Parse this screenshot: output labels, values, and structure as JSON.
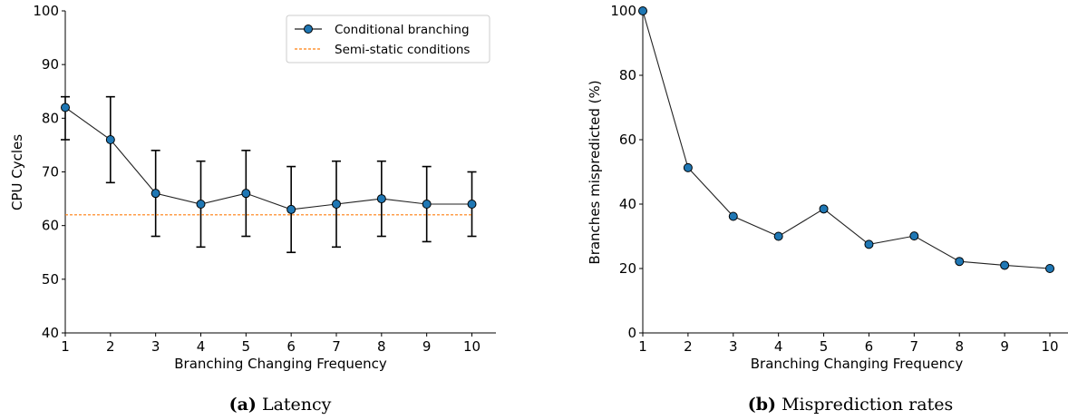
{
  "chart_data": [
    {
      "type": "line",
      "caption_tag": "(a)",
      "caption_text": "Latency",
      "xlabel": "Branching Changing Frequency",
      "ylabel": "CPU Cycles",
      "x": [
        1,
        2,
        3,
        4,
        5,
        6,
        7,
        8,
        9,
        10
      ],
      "xlim": [
        1,
        10.5
      ],
      "ylim": [
        40,
        100
      ],
      "yticks": [
        40,
        50,
        60,
        70,
        80,
        90,
        100
      ],
      "grid": false,
      "legend_position": "top-right",
      "series": [
        {
          "name": "Conditional branching",
          "style": "line-markers",
          "color": "#1f77b4",
          "values": [
            82,
            76,
            66,
            64,
            66,
            63,
            64,
            65,
            64,
            64
          ],
          "error_low": [
            76,
            68,
            58,
            56,
            58,
            55,
            56,
            58,
            57,
            58
          ],
          "error_high": [
            84,
            84,
            74,
            72,
            74,
            71,
            72,
            72,
            71,
            70
          ]
        },
        {
          "name": "Semi-static conditions",
          "style": "dashed",
          "color": "#ff7f0e",
          "values": [
            62,
            62,
            62,
            62,
            62,
            62,
            62,
            62,
            62,
            62
          ]
        }
      ]
    },
    {
      "type": "line",
      "caption_tag": "(b)",
      "caption_text": "Misprediction rates",
      "xlabel": "Branching Changing Frequency",
      "ylabel": "Branches mispredicted (%)",
      "x": [
        1,
        2,
        3,
        4,
        5,
        6,
        7,
        8,
        9,
        10
      ],
      "xlim": [
        1,
        10
      ],
      "ylim": [
        0,
        100
      ],
      "yticks": [
        0,
        20,
        40,
        60,
        80,
        100
      ],
      "grid": false,
      "series": [
        {
          "style": "line-markers",
          "color": "#1f77b4",
          "values": [
            100,
            51.3,
            36.2,
            30,
            38.5,
            27.5,
            30.1,
            22.2,
            21,
            20
          ]
        }
      ]
    }
  ]
}
